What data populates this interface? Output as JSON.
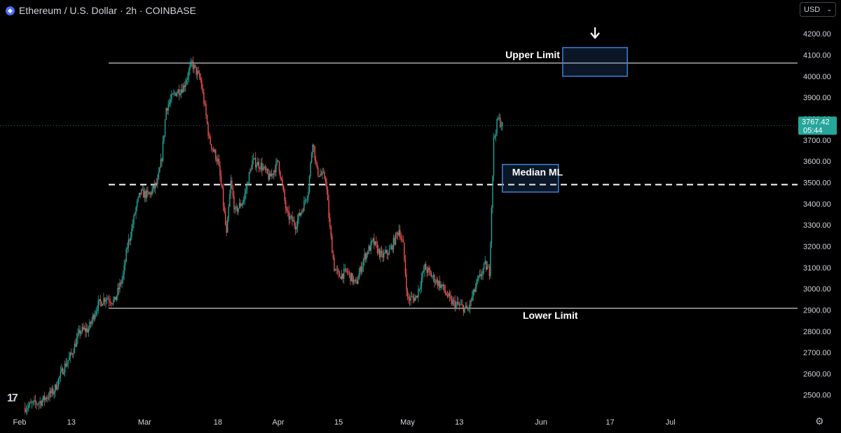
{
  "header": {
    "symbol_title": "Ethereum / U.S. Dollar · 2h · COINBASE",
    "currency": "USD"
  },
  "price_label": {
    "price": "3767.42",
    "countdown": "05:44"
  },
  "annotations": {
    "upper_limit": "Upper Limit",
    "lower_limit": "Lower Limit",
    "median": "Median ML"
  },
  "colors": {
    "background": "#000000",
    "up": "#26a69a",
    "down": "#ef5350",
    "box_border": "#3d7fd6",
    "price_tag": "#26a69a"
  },
  "icons": [
    "ethereum-icon",
    "chevron-down-icon",
    "tradingview-logo",
    "down-arrow-icon",
    "gear-icon"
  ],
  "chart_data": {
    "type": "candlestick",
    "title": "Ethereum / U.S. Dollar · 2h · COINBASE",
    "ylim": [
      2420,
      4260
    ],
    "y_ticks": [
      "2500.00",
      "2600.00",
      "2700.00",
      "2800.00",
      "2900.00",
      "3000.00",
      "3100.00",
      "3200.00",
      "3300.00",
      "3400.00",
      "3500.00",
      "3600.00",
      "3700.00",
      "3800.00",
      "3900.00",
      "4000.00",
      "4100.00",
      "4200.00"
    ],
    "x_ticks": [
      "Feb",
      "13",
      "Mar",
      "18",
      "Apr",
      "15",
      "May",
      "13",
      "Jun",
      "17",
      "Jul"
    ],
    "x_tick_dates": [
      "2024-02-01",
      "2024-02-13",
      "2024-03-01",
      "2024-03-18",
      "2024-04-01",
      "2024-04-15",
      "2024-05-01",
      "2024-05-13",
      "2024-06-01",
      "2024-06-17",
      "2024-07-01"
    ],
    "last_price": 3767.42,
    "levels": [
      {
        "name": "Upper Limit",
        "value": 4062,
        "style": "solid"
      },
      {
        "name": "Median ML",
        "value": 3490,
        "style": "dashed"
      },
      {
        "name": "Lower Limit",
        "value": 2908,
        "style": "solid"
      }
    ],
    "target_box": {
      "date_start": "2024-06-06",
      "date_end": "2024-06-21",
      "price_top": 4135,
      "price_bottom": 4000
    },
    "median_box": {
      "date_start": "2024-05-23",
      "date_end": "2024-06-05",
      "price_top": 3585,
      "price_bottom": 3455
    },
    "price_path": [
      [
        "2024-02-02",
        2440
      ],
      [
        "2024-02-06",
        2470
      ],
      [
        "2024-02-09",
        2520
      ],
      [
        "2024-02-11",
        2620
      ],
      [
        "2024-02-13",
        2690
      ],
      [
        "2024-02-15",
        2800
      ],
      [
        "2024-02-17",
        2810
      ],
      [
        "2024-02-19",
        2920
      ],
      [
        "2024-02-21",
        2960
      ],
      [
        "2024-02-23",
        2940
      ],
      [
        "2024-02-25",
        3060
      ],
      [
        "2024-02-26",
        3200
      ],
      [
        "2024-02-27",
        3280
      ],
      [
        "2024-02-28",
        3380
      ],
      [
        "2024-02-29",
        3450
      ],
      [
        "2024-03-02",
        3440
      ],
      [
        "2024-03-04",
        3500
      ],
      [
        "2024-03-05",
        3620
      ],
      [
        "2024-03-06",
        3850
      ],
      [
        "2024-03-08",
        3920
      ],
      [
        "2024-03-10",
        3950
      ],
      [
        "2024-03-12",
        4060
      ],
      [
        "2024-03-13",
        4020
      ],
      [
        "2024-03-14",
        3980
      ],
      [
        "2024-03-15",
        3850
      ],
      [
        "2024-03-16",
        3700
      ],
      [
        "2024-03-18",
        3600
      ],
      [
        "2024-03-19",
        3450
      ],
      [
        "2024-03-20",
        3250
      ],
      [
        "2024-03-21",
        3500
      ],
      [
        "2024-03-22",
        3360
      ],
      [
        "2024-03-24",
        3420
      ],
      [
        "2024-03-26",
        3600
      ],
      [
        "2024-03-28",
        3580
      ],
      [
        "2024-03-30",
        3520
      ],
      [
        "2024-04-01",
        3600
      ],
      [
        "2024-04-03",
        3350
      ],
      [
        "2024-04-05",
        3300
      ],
      [
        "2024-04-07",
        3400
      ],
      [
        "2024-04-08",
        3470
      ],
      [
        "2024-04-09",
        3700
      ],
      [
        "2024-04-10",
        3550
      ],
      [
        "2024-04-12",
        3520
      ],
      [
        "2024-04-13",
        3280
      ],
      [
        "2024-04-14",
        3100
      ],
      [
        "2024-04-15",
        3060
      ],
      [
        "2024-04-17",
        3080
      ],
      [
        "2024-04-19",
        3020
      ],
      [
        "2024-04-21",
        3150
      ],
      [
        "2024-04-23",
        3220
      ],
      [
        "2024-04-25",
        3150
      ],
      [
        "2024-04-27",
        3180
      ],
      [
        "2024-04-29",
        3280
      ],
      [
        "2024-04-30",
        3200
      ],
      [
        "2024-05-01",
        2950
      ],
      [
        "2024-05-03",
        2960
      ],
      [
        "2024-05-05",
        3100
      ],
      [
        "2024-05-07",
        3050
      ],
      [
        "2024-05-09",
        3010
      ],
      [
        "2024-05-11",
        2940
      ],
      [
        "2024-05-13",
        2920
      ],
      [
        "2024-05-15",
        2900
      ],
      [
        "2024-05-17",
        3020
      ],
      [
        "2024-05-19",
        3110
      ],
      [
        "2024-05-20",
        3080
      ],
      [
        "2024-05-21",
        3700
      ],
      [
        "2024-05-22",
        3800
      ],
      [
        "2024-05-23",
        3767
      ]
    ]
  }
}
